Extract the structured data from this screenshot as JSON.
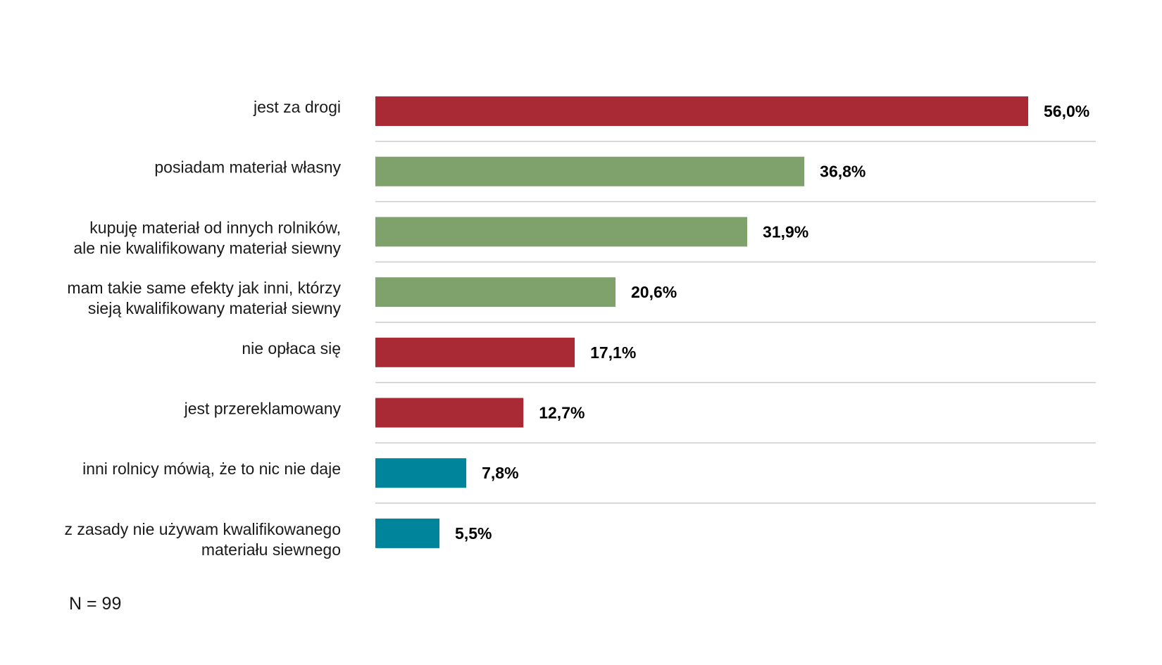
{
  "chart_data": {
    "type": "bar",
    "orientation": "horizontal",
    "categories": [
      [
        "jest za drogi"
      ],
      [
        "posiadam materiał własny"
      ],
      [
        "kupuję materiał od innych rolników,",
        "ale nie kwalifikowany materiał siewny"
      ],
      [
        "mam takie same efekty jak inni, którzy",
        "sieją kwalifikowany materiał siewny"
      ],
      [
        "nie opłaca się"
      ],
      [
        "jest przereklamowany"
      ],
      [
        "inni rolnicy mówią, że to nic nie daje"
      ],
      [
        "z zasady nie używam kwalifikowanego",
        "materiału siewnego"
      ]
    ],
    "values": [
      56.0,
      36.8,
      31.9,
      20.6,
      17.1,
      12.7,
      7.8,
      5.5
    ],
    "value_labels": [
      "56,0%",
      "36,8%",
      "31,9%",
      "20,6%",
      "17,1%",
      "12,7%",
      "7,8%",
      "5,5%"
    ],
    "bar_colors": [
      "#a92a35",
      "#7fa26d",
      "#7fa26d",
      "#7fa26d",
      "#a92a35",
      "#a92a35",
      "#00849b",
      "#00849b"
    ],
    "xlim": [
      0,
      62
    ],
    "grid": "horizontal separators between rows",
    "note": "N = 99",
    "separator_color": "#cccccc"
  }
}
